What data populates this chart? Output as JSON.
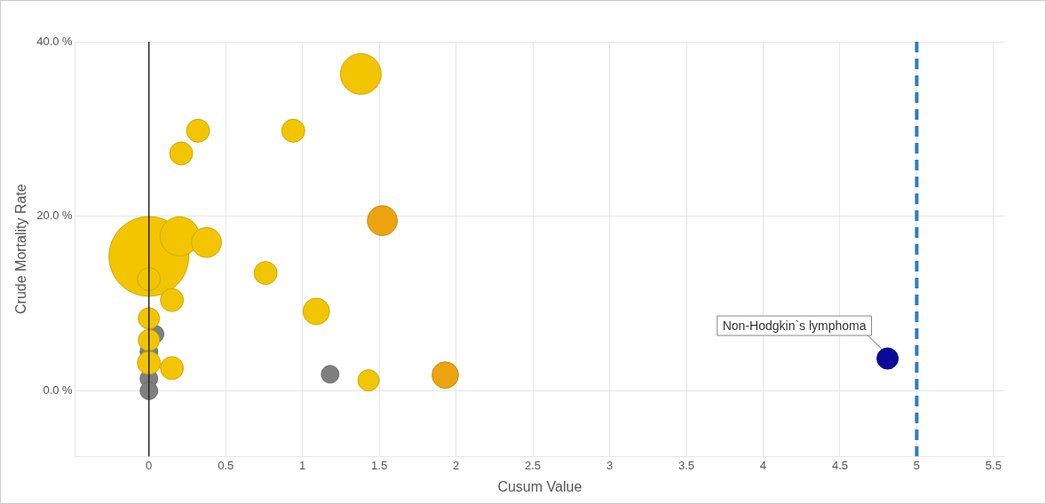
{
  "chart_data": {
    "type": "bubble",
    "xlabel": "Cusum Value",
    "ylabel": "Crude Mortality Rate",
    "xlim": [
      -0.48,
      5.57
    ],
    "ylim": [
      -7.5,
      40
    ],
    "xticks": [
      0,
      0.5,
      1,
      1.5,
      2,
      2.5,
      3,
      3.5,
      4,
      4.5,
      5,
      5.5
    ],
    "yticks": [
      {
        "value": 0,
        "label": "0.0 %"
      },
      {
        "value": 20,
        "label": "20.0 %"
      },
      {
        "value": 40,
        "label": "40.0 %"
      }
    ],
    "grid": true,
    "legend": false,
    "series": [
      {
        "color": "#f2c500",
        "x": [
          0,
          0.2,
          1.38,
          0.375,
          0.32,
          0.94,
          0.21,
          0.76,
          1.09,
          0.15,
          0,
          0,
          0,
          0.15,
          0,
          1.43
        ],
        "values": [
          15.4,
          17.7,
          36.3,
          17.0,
          29.8,
          29.8,
          27.2,
          13.5,
          9.1,
          10.4,
          12.8,
          8.3,
          5.8,
          2.6,
          3.2,
          1.2
        ],
        "sizes": [
          1,
          0.24,
          0.26,
          0.14,
          0.083,
          0.083,
          0.083,
          0.083,
          0.11,
          0.083,
          0.083,
          0.071,
          0.071,
          0.083,
          0.083,
          0.071
        ]
      },
      {
        "color": "#eba40f",
        "x": [
          1.52,
          1.93
        ],
        "values": [
          19.5,
          1.8
        ],
        "sizes": [
          0.14,
          0.11
        ]
      },
      {
        "color": "#7f7f7f",
        "x": [
          0.04,
          0,
          0,
          0,
          1.18
        ],
        "values": [
          6.5,
          4.5,
          1.4,
          0,
          1.9
        ],
        "sizes": [
          0.049,
          0.049,
          0.049,
          0.049,
          0.049
        ]
      },
      {
        "color": "#0a0a9a",
        "x": [
          4.81
        ],
        "values": [
          3.7
        ],
        "sizes": [
          0.071
        ]
      }
    ],
    "ref_lines": [
      {
        "axis": "x",
        "value": 0,
        "color": "#222222",
        "line_style": "solid"
      },
      {
        "axis": "x",
        "value": 5,
        "color": "#2e7cc0",
        "line_style": "dashed"
      }
    ],
    "annotations": [
      {
        "text": "Non-Hodgkin`s lymphoma",
        "x": 4.81,
        "y": 3.7
      }
    ]
  }
}
